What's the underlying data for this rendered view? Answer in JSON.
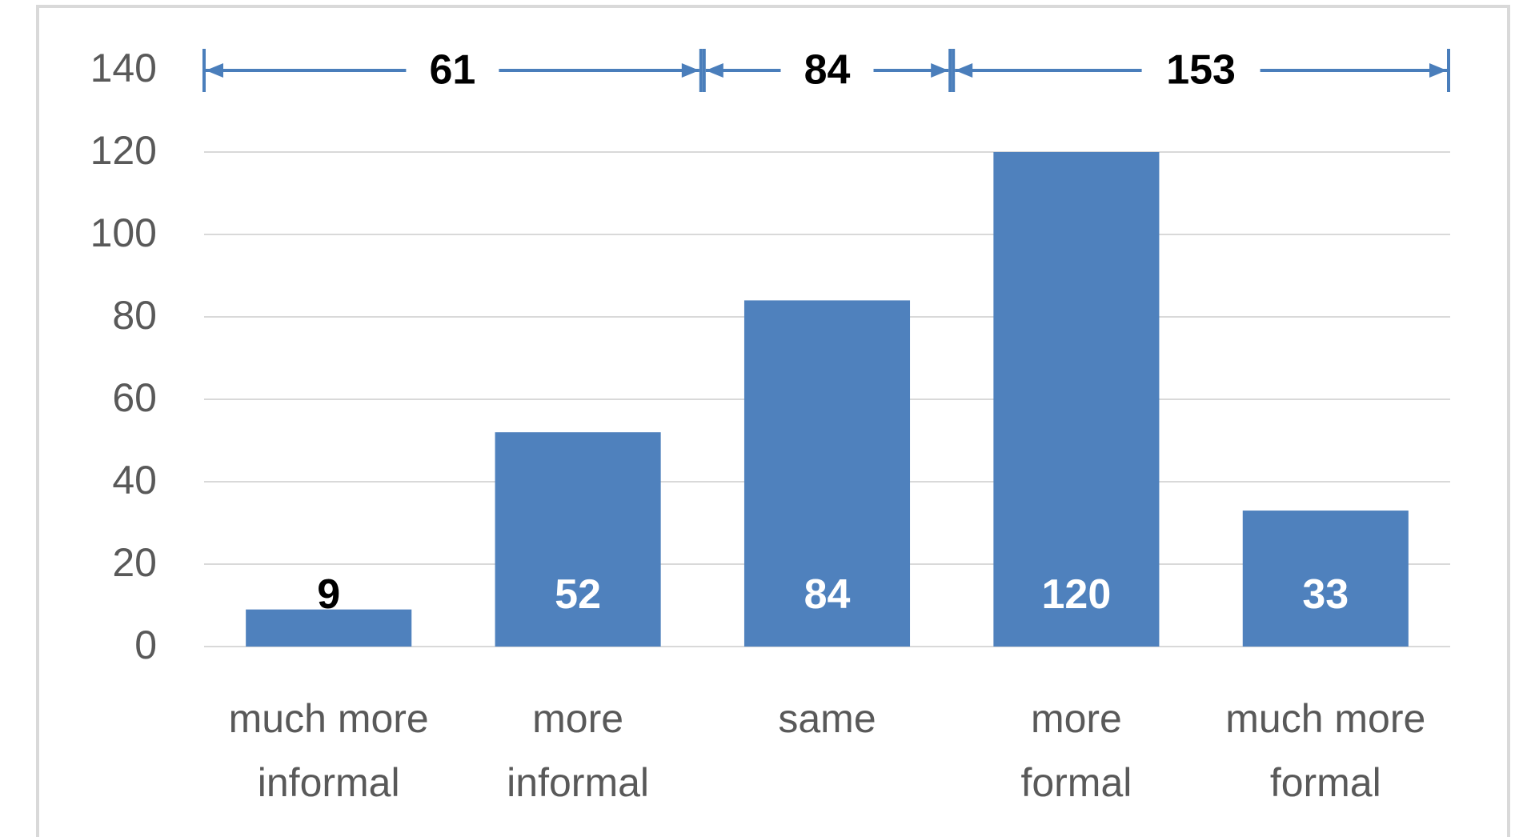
{
  "colors": {
    "bar": "#4f81bd",
    "grid": "#d9d9d9",
    "axis_text": "#595959",
    "bracket": "#4a7ebb"
  },
  "chart_data": {
    "type": "bar",
    "categories": [
      [
        "much more",
        "informal"
      ],
      [
        "more",
        "informal"
      ],
      [
        "same"
      ],
      [
        "more",
        "formal"
      ],
      [
        "much more",
        "formal"
      ]
    ],
    "values": [
      9,
      52,
      84,
      120,
      33
    ],
    "data_labels": [
      "9",
      "52",
      "84",
      "120",
      "33"
    ],
    "ylim": [
      0,
      140
    ],
    "yticks": [
      0,
      20,
      40,
      60,
      80,
      100,
      120,
      140
    ],
    "grid": true,
    "legend": "none",
    "annotations": [
      {
        "label": "61",
        "from_category": 0,
        "to_category": 1
      },
      {
        "label": "84",
        "from_category": 2,
        "to_category": 2
      },
      {
        "label": "153",
        "from_category": 3,
        "to_category": 4
      }
    ]
  }
}
